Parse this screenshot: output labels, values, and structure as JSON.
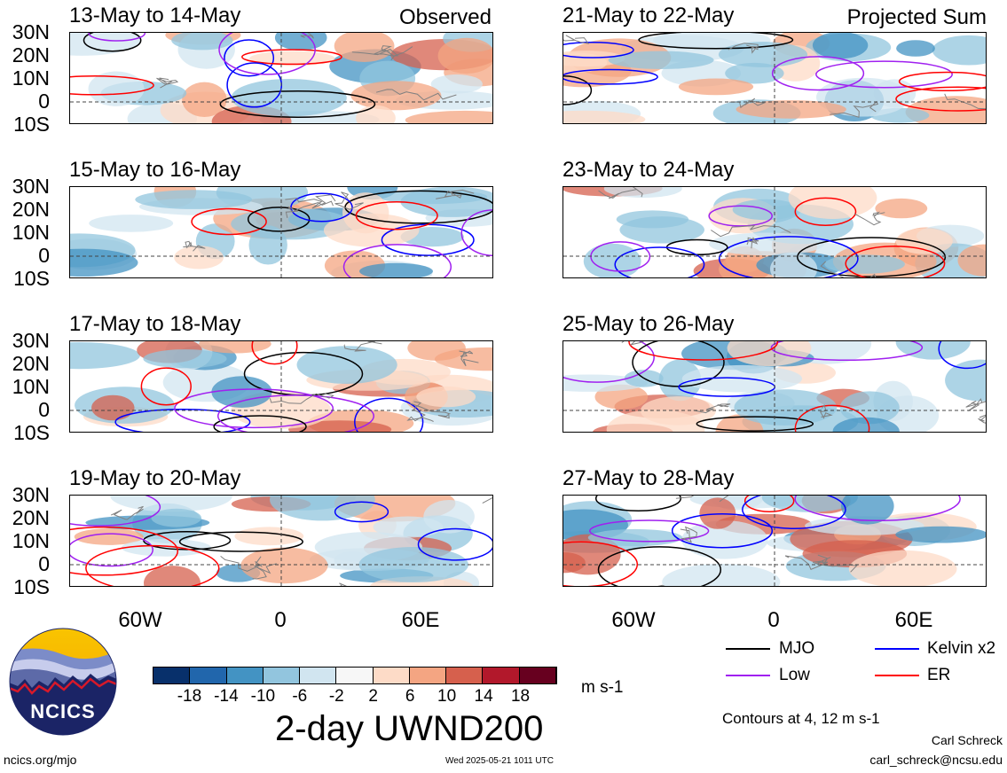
{
  "header": {
    "left_label": "Observed",
    "right_label": "Projected Sum"
  },
  "panels_left": [
    {
      "title": "13-May to 14-May"
    },
    {
      "title": "15-May to 16-May"
    },
    {
      "title": "17-May to 18-May"
    },
    {
      "title": "19-May to 20-May"
    }
  ],
  "panels_right": [
    {
      "title": "21-May to 22-May"
    },
    {
      "title": "23-May to 24-May"
    },
    {
      "title": "25-May to 26-May"
    },
    {
      "title": "27-May to 28-May"
    }
  ],
  "lat_labels": [
    "30N",
    "20N",
    "10N",
    "0",
    "10S"
  ],
  "lon_labels": [
    "60W",
    "0",
    "60E"
  ],
  "colorbar": {
    "ticks": [
      "-18",
      "-14",
      "-10",
      "-6",
      "-2",
      "2",
      "6",
      "10",
      "14",
      "18"
    ],
    "colors": [
      "#08306b",
      "#2166ac",
      "#4393c3",
      "#92c5de",
      "#d1e5f0",
      "#f7f7f7",
      "#fddbc7",
      "#f4a582",
      "#d6604d",
      "#b2182b",
      "#67001f"
    ],
    "units": "m s-1"
  },
  "legend": {
    "items": [
      {
        "label": "MJO",
        "color": "#000000"
      },
      {
        "label": "Kelvin x2",
        "color": "#0000ff"
      },
      {
        "label": "Low",
        "color": "#a020f0"
      },
      {
        "label": "ER",
        "color": "#ff0000"
      }
    ],
    "contours_note": "Contours at 4, 12 m s-1"
  },
  "title": "2-day UWND200",
  "logo": {
    "text": "NCICS"
  },
  "footer": {
    "url": "ncics.org/mjo",
    "timestamp": "Wed 2025-05-21 1011 UTC",
    "author": "Carl Schreck",
    "email": "carl_schreck@ncsu.edu"
  }
}
